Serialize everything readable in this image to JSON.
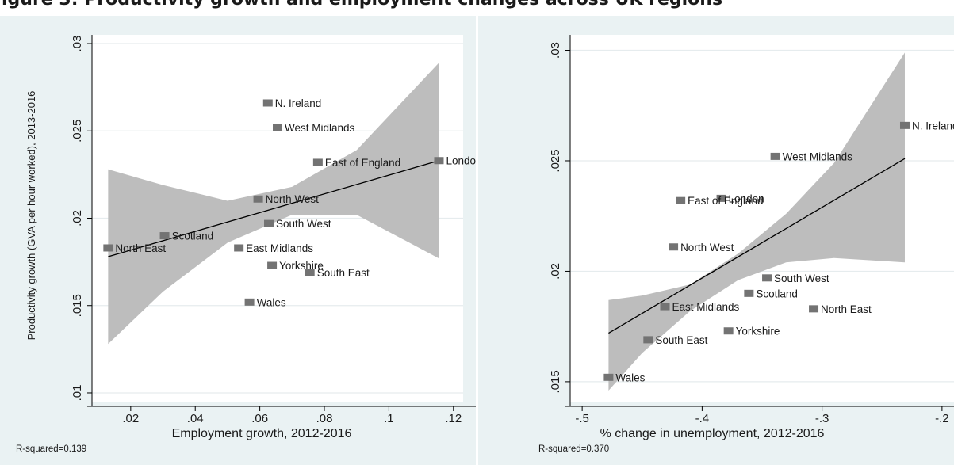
{
  "page": {
    "title": "igure 3: Productivity growth and employment changes across UK regions"
  },
  "colors": {
    "panel_background": "#eaf2f3",
    "plot_background": "#ffffff",
    "ci_band": "#bdbdbd",
    "marker": "#737373",
    "fit_line": "#000000",
    "grid": "#e6ecee",
    "text": "#1a1a1a"
  },
  "chart_data": [
    {
      "type": "scatter",
      "xlabel": "Employment growth, 2012-2016",
      "ylabel": "Productivity growth (GVA per hour worked), 2013-2016",
      "note": "R-squared=0.139",
      "xlim": [
        0.008,
        0.123
      ],
      "ylim": [
        0.0095,
        0.0305
      ],
      "xticks": [
        0.02,
        0.04,
        0.06,
        0.08,
        0.1,
        0.12
      ],
      "xtick_labels": [
        ".02",
        ".04",
        ".06",
        ".08",
        ".1",
        ".12"
      ],
      "yticks": [
        0.01,
        0.015,
        0.02,
        0.025,
        0.03
      ],
      "ytick_labels": [
        ".01",
        ".015",
        ".02",
        ".025",
        ".03"
      ],
      "grid": true,
      "points": [
        {
          "label": "N. Ireland",
          "x": 0.0625,
          "y": 0.0266
        },
        {
          "label": "West Midlands",
          "x": 0.0655,
          "y": 0.0252
        },
        {
          "label": "East of England",
          "x": 0.078,
          "y": 0.0232
        },
        {
          "label": "Londo",
          "x": 0.1155,
          "y": 0.0233
        },
        {
          "label": "North West",
          "x": 0.0595,
          "y": 0.0211
        },
        {
          "label": "South West",
          "x": 0.0628,
          "y": 0.0197
        },
        {
          "label": "Scotland",
          "x": 0.0305,
          "y": 0.019
        },
        {
          "label": "North East",
          "x": 0.013,
          "y": 0.0183
        },
        {
          "label": "East Midlands",
          "x": 0.0535,
          "y": 0.0183
        },
        {
          "label": "Yorkshire",
          "x": 0.0638,
          "y": 0.0173
        },
        {
          "label": "South East",
          "x": 0.0755,
          "y": 0.0169
        },
        {
          "label": "Wales",
          "x": 0.0568,
          "y": 0.0152
        }
      ],
      "fit_line": {
        "x": [
          0.013,
          0.1155
        ],
        "y": [
          0.0178,
          0.0233
        ]
      },
      "ci_band": {
        "x": [
          0.013,
          0.03,
          0.05,
          0.07,
          0.09,
          0.1155
        ],
        "upper": [
          0.0228,
          0.0219,
          0.021,
          0.0218,
          0.0239,
          0.0289
        ],
        "lower": [
          0.0128,
          0.0158,
          0.0186,
          0.0202,
          0.0202,
          0.0177
        ]
      }
    },
    {
      "type": "scatter",
      "xlabel": "% change in unemployment, 2012-2016",
      "ylabel": "",
      "note": "R-squared=0.370",
      "xlim": [
        -0.51,
        -0.19
      ],
      "ylim": [
        0.0141,
        0.0307
      ],
      "xticks": [
        -0.5,
        -0.4,
        -0.3,
        -0.2
      ],
      "xtick_labels": [
        "-.5",
        "-.4",
        "-.3",
        "-.2"
      ],
      "yticks": [
        0.015,
        0.02,
        0.025,
        0.03
      ],
      "ytick_labels": [
        ".015",
        ".02",
        ".025",
        ".03"
      ],
      "grid": true,
      "points": [
        {
          "label": "N. Ireland",
          "x": -0.231,
          "y": 0.0266
        },
        {
          "label": "West Midlands",
          "x": -0.339,
          "y": 0.0252
        },
        {
          "label": "London",
          "x": -0.384,
          "y": 0.0233
        },
        {
          "label": "East of England",
          "x": -0.418,
          "y": 0.0232
        },
        {
          "label": "North West",
          "x": -0.424,
          "y": 0.0211
        },
        {
          "label": "South West",
          "x": -0.346,
          "y": 0.0197
        },
        {
          "label": "Scotland",
          "x": -0.361,
          "y": 0.019
        },
        {
          "label": "East Midlands",
          "x": -0.431,
          "y": 0.0184
        },
        {
          "label": "North East",
          "x": -0.307,
          "y": 0.0183
        },
        {
          "label": "Yorkshire",
          "x": -0.378,
          "y": 0.0173
        },
        {
          "label": "South East",
          "x": -0.445,
          "y": 0.0169
        },
        {
          "label": "Wales",
          "x": -0.478,
          "y": 0.0152
        }
      ],
      "fit_line": {
        "x": [
          -0.478,
          -0.231
        ],
        "y": [
          0.0172,
          0.0251
        ]
      },
      "ci_band": {
        "x": [
          -0.478,
          -0.45,
          -0.41,
          -0.37,
          -0.33,
          -0.29,
          -0.231
        ],
        "upper": [
          0.0187,
          0.0189,
          0.0194,
          0.0208,
          0.0226,
          0.0249,
          0.0299
        ],
        "lower": [
          0.0146,
          0.0163,
          0.0182,
          0.0196,
          0.0204,
          0.0206,
          0.0204
        ]
      }
    }
  ]
}
